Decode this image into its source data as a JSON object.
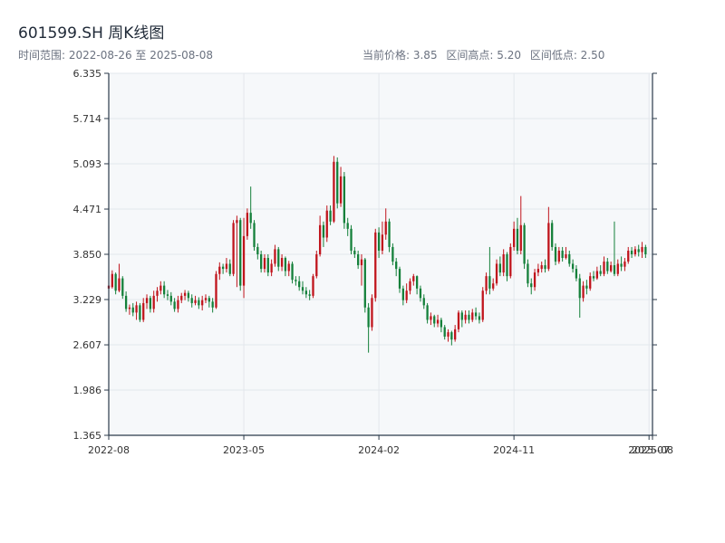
{
  "title": "601599.SH 周K线图",
  "range_text": "时间范围: 2022-08-26 至 2025-08-08",
  "stats": {
    "current_label": "当前价格: 3.85",
    "high_label": "区间高点: 5.20",
    "low_label": "区间低点: 2.50"
  },
  "colors": {
    "up": "#c0141c",
    "down": "#14803a",
    "grid": "#e3e7ec",
    "plot_bg": "#f6f8fa",
    "axis": "#2b3a4a"
  },
  "chart_data": {
    "type": "candlestick",
    "ylim": [
      1.365,
      6.335
    ],
    "yticks": [
      "6.335",
      "5.714",
      "5.093",
      "4.471",
      "3.850",
      "3.229",
      "2.607",
      "1.986",
      "1.365"
    ],
    "xticks": [
      "2022-08",
      "2023-05",
      "2024-02",
      "2024-11",
      "2025-07",
      "2025-08"
    ],
    "xtick_weeks": [
      0,
      39,
      78,
      117,
      156,
      157
    ],
    "x_range_weeks": [
      0,
      157
    ],
    "grid": true,
    "series": [
      {
        "o": 3.38,
        "c": 3.42,
        "h": 3.45,
        "l": 3.35
      },
      {
        "o": 3.4,
        "c": 3.58,
        "h": 3.63,
        "l": 3.38
      },
      {
        "o": 3.58,
        "c": 3.35,
        "h": 3.6,
        "l": 3.3
      },
      {
        "o": 3.35,
        "c": 3.52,
        "h": 3.72,
        "l": 3.33
      },
      {
        "o": 3.52,
        "c": 3.28,
        "h": 3.55,
        "l": 3.24
      },
      {
        "o": 3.28,
        "c": 3.1,
        "h": 3.34,
        "l": 3.06
      },
      {
        "o": 3.1,
        "c": 3.12,
        "h": 3.16,
        "l": 3.02
      },
      {
        "o": 3.12,
        "c": 3.05,
        "h": 3.18,
        "l": 3.0
      },
      {
        "o": 3.05,
        "c": 3.15,
        "h": 3.2,
        "l": 2.95
      },
      {
        "o": 3.15,
        "c": 2.95,
        "h": 3.18,
        "l": 2.92
      },
      {
        "o": 2.95,
        "c": 3.18,
        "h": 3.25,
        "l": 2.92
      },
      {
        "o": 3.18,
        "c": 3.25,
        "h": 3.3,
        "l": 3.1
      },
      {
        "o": 3.25,
        "c": 3.1,
        "h": 3.28,
        "l": 3.05
      },
      {
        "o": 3.1,
        "c": 3.28,
        "h": 3.35,
        "l": 3.05
      },
      {
        "o": 3.28,
        "c": 3.35,
        "h": 3.4,
        "l": 3.2
      },
      {
        "o": 3.35,
        "c": 3.42,
        "h": 3.48,
        "l": 3.3
      },
      {
        "o": 3.42,
        "c": 3.3,
        "h": 3.48,
        "l": 3.25
      },
      {
        "o": 3.3,
        "c": 3.28,
        "h": 3.36,
        "l": 3.22
      },
      {
        "o": 3.28,
        "c": 3.2,
        "h": 3.33,
        "l": 3.15
      },
      {
        "o": 3.2,
        "c": 3.1,
        "h": 3.25,
        "l": 3.06
      },
      {
        "o": 3.1,
        "c": 3.22,
        "h": 3.28,
        "l": 3.05
      },
      {
        "o": 3.22,
        "c": 3.28,
        "h": 3.32,
        "l": 3.18
      },
      {
        "o": 3.28,
        "c": 3.32,
        "h": 3.36,
        "l": 3.22
      },
      {
        "o": 3.32,
        "c": 3.25,
        "h": 3.35,
        "l": 3.2
      },
      {
        "o": 3.25,
        "c": 3.18,
        "h": 3.3,
        "l": 3.12
      },
      {
        "o": 3.18,
        "c": 3.22,
        "h": 3.28,
        "l": 3.15
      },
      {
        "o": 3.22,
        "c": 3.15,
        "h": 3.26,
        "l": 3.1
      },
      {
        "o": 3.15,
        "c": 3.22,
        "h": 3.28,
        "l": 3.08
      },
      {
        "o": 3.22,
        "c": 3.25,
        "h": 3.3,
        "l": 3.18
      },
      {
        "o": 3.25,
        "c": 3.2,
        "h": 3.28,
        "l": 3.12
      },
      {
        "o": 3.2,
        "c": 3.12,
        "h": 3.25,
        "l": 3.05
      },
      {
        "o": 3.12,
        "c": 3.58,
        "h": 3.62,
        "l": 3.1
      },
      {
        "o": 3.58,
        "c": 3.68,
        "h": 3.74,
        "l": 3.5
      },
      {
        "o": 3.68,
        "c": 3.65,
        "h": 3.72,
        "l": 3.58
      },
      {
        "o": 3.65,
        "c": 3.72,
        "h": 3.8,
        "l": 3.6
      },
      {
        "o": 3.72,
        "c": 3.58,
        "h": 3.78,
        "l": 3.55
      },
      {
        "o": 3.58,
        "c": 4.28,
        "h": 4.32,
        "l": 3.55
      },
      {
        "o": 4.28,
        "c": 4.32,
        "h": 4.38,
        "l": 3.4
      },
      {
        "o": 4.32,
        "c": 3.42,
        "h": 4.35,
        "l": 3.35
      },
      {
        "o": 3.42,
        "c": 4.1,
        "h": 4.35,
        "l": 3.25
      },
      {
        "o": 4.1,
        "c": 4.42,
        "h": 4.48,
        "l": 4.05
      },
      {
        "o": 4.42,
        "c": 4.28,
        "h": 4.78,
        "l": 4.2
      },
      {
        "o": 4.28,
        "c": 3.95,
        "h": 4.32,
        "l": 3.9
      },
      {
        "o": 3.95,
        "c": 3.85,
        "h": 4.0,
        "l": 3.78
      },
      {
        "o": 3.85,
        "c": 3.65,
        "h": 3.9,
        "l": 3.6
      },
      {
        "o": 3.65,
        "c": 3.8,
        "h": 3.85,
        "l": 3.6
      },
      {
        "o": 3.8,
        "c": 3.6,
        "h": 3.85,
        "l": 3.55
      },
      {
        "o": 3.6,
        "c": 3.72,
        "h": 3.78,
        "l": 3.55
      },
      {
        "o": 3.72,
        "c": 3.92,
        "h": 3.98,
        "l": 3.68
      },
      {
        "o": 3.92,
        "c": 3.68,
        "h": 3.95,
        "l": 3.62
      },
      {
        "o": 3.68,
        "c": 3.8,
        "h": 3.85,
        "l": 3.62
      },
      {
        "o": 3.8,
        "c": 3.62,
        "h": 3.82,
        "l": 3.55
      },
      {
        "o": 3.62,
        "c": 3.72,
        "h": 3.76,
        "l": 3.55
      },
      {
        "o": 3.72,
        "c": 3.5,
        "h": 3.75,
        "l": 3.45
      },
      {
        "o": 3.5,
        "c": 3.48,
        "h": 3.55,
        "l": 3.42
      },
      {
        "o": 3.48,
        "c": 3.4,
        "h": 3.55,
        "l": 3.35
      },
      {
        "o": 3.4,
        "c": 3.35,
        "h": 3.48,
        "l": 3.3
      },
      {
        "o": 3.35,
        "c": 3.3,
        "h": 3.4,
        "l": 3.25
      },
      {
        "o": 3.3,
        "c": 3.28,
        "h": 3.36,
        "l": 3.22
      },
      {
        "o": 3.28,
        "c": 3.55,
        "h": 3.58,
        "l": 3.25
      },
      {
        "o": 3.55,
        "c": 3.85,
        "h": 3.9,
        "l": 3.52
      },
      {
        "o": 3.85,
        "c": 4.25,
        "h": 4.38,
        "l": 3.82
      },
      {
        "o": 4.25,
        "c": 4.08,
        "h": 4.3,
        "l": 3.95
      },
      {
        "o": 4.08,
        "c": 4.45,
        "h": 4.52,
        "l": 4.02
      },
      {
        "o": 4.45,
        "c": 4.3,
        "h": 4.52,
        "l": 4.25
      },
      {
        "o": 4.3,
        "c": 5.12,
        "h": 5.2,
        "l": 4.28
      },
      {
        "o": 5.12,
        "c": 4.55,
        "h": 5.18,
        "l": 4.48
      },
      {
        "o": 4.55,
        "c": 4.92,
        "h": 5.05,
        "l": 4.5
      },
      {
        "o": 4.92,
        "c": 4.28,
        "h": 4.98,
        "l": 4.2
      },
      {
        "o": 4.28,
        "c": 4.2,
        "h": 4.35,
        "l": 4.1
      },
      {
        "o": 4.2,
        "c": 3.9,
        "h": 4.25,
        "l": 3.85
      },
      {
        "o": 3.9,
        "c": 3.85,
        "h": 3.95,
        "l": 3.8
      },
      {
        "o": 3.85,
        "c": 3.7,
        "h": 3.9,
        "l": 3.65
      },
      {
        "o": 3.7,
        "c": 3.78,
        "h": 3.85,
        "l": 3.42
      },
      {
        "o": 3.78,
        "c": 3.12,
        "h": 3.8,
        "l": 3.05
      },
      {
        "o": 3.12,
        "c": 2.85,
        "h": 3.18,
        "l": 2.5
      },
      {
        "o": 2.85,
        "c": 3.25,
        "h": 3.3,
        "l": 2.8
      },
      {
        "o": 3.25,
        "c": 4.15,
        "h": 4.2,
        "l": 3.2
      },
      {
        "o": 4.15,
        "c": 3.9,
        "h": 4.22,
        "l": 3.8
      },
      {
        "o": 3.9,
        "c": 4.12,
        "h": 4.3,
        "l": 3.85
      },
      {
        "o": 4.12,
        "c": 4.3,
        "h": 4.48,
        "l": 4.05
      },
      {
        "o": 4.3,
        "c": 3.95,
        "h": 4.34,
        "l": 3.88
      },
      {
        "o": 3.95,
        "c": 3.75,
        "h": 4.0,
        "l": 3.7
      },
      {
        "o": 3.75,
        "c": 3.65,
        "h": 3.8,
        "l": 3.55
      },
      {
        "o": 3.65,
        "c": 3.38,
        "h": 3.68,
        "l": 3.32
      },
      {
        "o": 3.38,
        "c": 3.22,
        "h": 3.42,
        "l": 3.15
      },
      {
        "o": 3.22,
        "c": 3.35,
        "h": 3.45,
        "l": 3.18
      },
      {
        "o": 3.35,
        "c": 3.48,
        "h": 3.52,
        "l": 3.3
      },
      {
        "o": 3.48,
        "c": 3.55,
        "h": 3.58,
        "l": 3.42
      },
      {
        "o": 3.55,
        "c": 3.38,
        "h": 3.56,
        "l": 3.3
      },
      {
        "o": 3.38,
        "c": 3.25,
        "h": 3.42,
        "l": 3.2
      },
      {
        "o": 3.25,
        "c": 3.15,
        "h": 3.3,
        "l": 3.1
      },
      {
        "o": 3.15,
        "c": 2.95,
        "h": 3.18,
        "l": 2.9
      },
      {
        "o": 2.95,
        "c": 3.0,
        "h": 3.05,
        "l": 2.88
      },
      {
        "o": 3.0,
        "c": 2.9,
        "h": 3.02,
        "l": 2.85
      },
      {
        "o": 2.9,
        "c": 2.95,
        "h": 3.02,
        "l": 2.85
      },
      {
        "o": 2.95,
        "c": 2.85,
        "h": 2.98,
        "l": 2.78
      },
      {
        "o": 2.85,
        "c": 2.72,
        "h": 2.88,
        "l": 2.68
      },
      {
        "o": 2.72,
        "c": 2.78,
        "h": 2.82,
        "l": 2.65
      },
      {
        "o": 2.78,
        "c": 2.68,
        "h": 2.8,
        "l": 2.6
      },
      {
        "o": 2.68,
        "c": 2.82,
        "h": 2.88,
        "l": 2.65
      },
      {
        "o": 2.82,
        "c": 3.05,
        "h": 3.08,
        "l": 2.78
      },
      {
        "o": 3.05,
        "c": 2.95,
        "h": 3.08,
        "l": 2.85
      },
      {
        "o": 2.95,
        "c": 3.02,
        "h": 3.08,
        "l": 2.9
      },
      {
        "o": 3.02,
        "c": 2.95,
        "h": 3.08,
        "l": 2.9
      },
      {
        "o": 2.95,
        "c": 3.05,
        "h": 3.1,
        "l": 2.92
      },
      {
        "o": 3.05,
        "c": 3.0,
        "h": 3.12,
        "l": 2.95
      },
      {
        "o": 3.0,
        "c": 2.95,
        "h": 3.05,
        "l": 2.9
      },
      {
        "o": 2.95,
        "c": 3.35,
        "h": 3.4,
        "l": 2.92
      },
      {
        "o": 3.35,
        "c": 3.55,
        "h": 3.6,
        "l": 3.3
      },
      {
        "o": 3.55,
        "c": 3.38,
        "h": 3.95,
        "l": 3.3
      },
      {
        "o": 3.38,
        "c": 3.45,
        "h": 3.52,
        "l": 3.35
      },
      {
        "o": 3.45,
        "c": 3.72,
        "h": 3.78,
        "l": 3.42
      },
      {
        "o": 3.72,
        "c": 3.6,
        "h": 3.82,
        "l": 3.55
      },
      {
        "o": 3.6,
        "c": 3.85,
        "h": 3.92,
        "l": 3.55
      },
      {
        "o": 3.85,
        "c": 3.55,
        "h": 3.88,
        "l": 3.48
      },
      {
        "o": 3.55,
        "c": 3.95,
        "h": 4.0,
        "l": 3.52
      },
      {
        "o": 3.95,
        "c": 4.2,
        "h": 4.3,
        "l": 3.9
      },
      {
        "o": 4.2,
        "c": 3.9,
        "h": 4.35,
        "l": 3.85
      },
      {
        "o": 3.9,
        "c": 4.25,
        "h": 4.65,
        "l": 3.85
      },
      {
        "o": 4.25,
        "c": 3.72,
        "h": 4.28,
        "l": 3.65
      },
      {
        "o": 3.72,
        "c": 3.45,
        "h": 3.78,
        "l": 3.4
      },
      {
        "o": 3.45,
        "c": 3.4,
        "h": 3.52,
        "l": 3.3
      },
      {
        "o": 3.4,
        "c": 3.6,
        "h": 3.65,
        "l": 3.35
      },
      {
        "o": 3.6,
        "c": 3.65,
        "h": 3.72,
        "l": 3.55
      },
      {
        "o": 3.65,
        "c": 3.7,
        "h": 3.75,
        "l": 3.6
      },
      {
        "o": 3.7,
        "c": 3.65,
        "h": 3.78,
        "l": 3.6
      },
      {
        "o": 3.65,
        "c": 4.28,
        "h": 4.5,
        "l": 3.62
      },
      {
        "o": 4.28,
        "c": 3.95,
        "h": 4.32,
        "l": 3.9
      },
      {
        "o": 3.95,
        "c": 3.75,
        "h": 4.0,
        "l": 3.7
      },
      {
        "o": 3.75,
        "c": 3.9,
        "h": 3.95,
        "l": 3.72
      },
      {
        "o": 3.9,
        "c": 3.8,
        "h": 3.95,
        "l": 3.75
      },
      {
        "o": 3.8,
        "c": 3.85,
        "h": 3.95,
        "l": 3.78
      },
      {
        "o": 3.85,
        "c": 3.72,
        "h": 3.9,
        "l": 3.68
      },
      {
        "o": 3.72,
        "c": 3.65,
        "h": 3.78,
        "l": 3.6
      },
      {
        "o": 3.65,
        "c": 3.52,
        "h": 3.7,
        "l": 3.48
      },
      {
        "o": 3.52,
        "c": 3.25,
        "h": 3.58,
        "l": 2.98
      },
      {
        "o": 3.25,
        "c": 3.42,
        "h": 3.48,
        "l": 3.2
      },
      {
        "o": 3.42,
        "c": 3.38,
        "h": 3.5,
        "l": 3.3
      },
      {
        "o": 3.38,
        "c": 3.55,
        "h": 3.6,
        "l": 3.35
      },
      {
        "o": 3.55,
        "c": 3.52,
        "h": 3.62,
        "l": 3.48
      },
      {
        "o": 3.52,
        "c": 3.62,
        "h": 3.68,
        "l": 3.5
      },
      {
        "o": 3.62,
        "c": 3.58,
        "h": 3.7,
        "l": 3.55
      },
      {
        "o": 3.58,
        "c": 3.75,
        "h": 3.82,
        "l": 3.55
      },
      {
        "o": 3.75,
        "c": 3.62,
        "h": 3.8,
        "l": 3.58
      },
      {
        "o": 3.62,
        "c": 3.7,
        "h": 3.75,
        "l": 3.6
      },
      {
        "o": 3.7,
        "c": 3.58,
        "h": 4.3,
        "l": 3.55
      },
      {
        "o": 3.58,
        "c": 3.72,
        "h": 3.78,
        "l": 3.55
      },
      {
        "o": 3.72,
        "c": 3.68,
        "h": 3.82,
        "l": 3.62
      },
      {
        "o": 3.68,
        "c": 3.75,
        "h": 3.8,
        "l": 3.62
      },
      {
        "o": 3.75,
        "c": 3.9,
        "h": 3.95,
        "l": 3.72
      },
      {
        "o": 3.9,
        "c": 3.85,
        "h": 3.95,
        "l": 3.8
      },
      {
        "o": 3.85,
        "c": 3.92,
        "h": 3.96,
        "l": 3.82
      },
      {
        "o": 3.92,
        "c": 3.88,
        "h": 3.98,
        "l": 3.82
      },
      {
        "o": 3.88,
        "c": 3.95,
        "h": 4.02,
        "l": 3.8
      },
      {
        "o": 3.95,
        "c": 3.85,
        "h": 3.98,
        "l": 3.8
      }
    ]
  }
}
